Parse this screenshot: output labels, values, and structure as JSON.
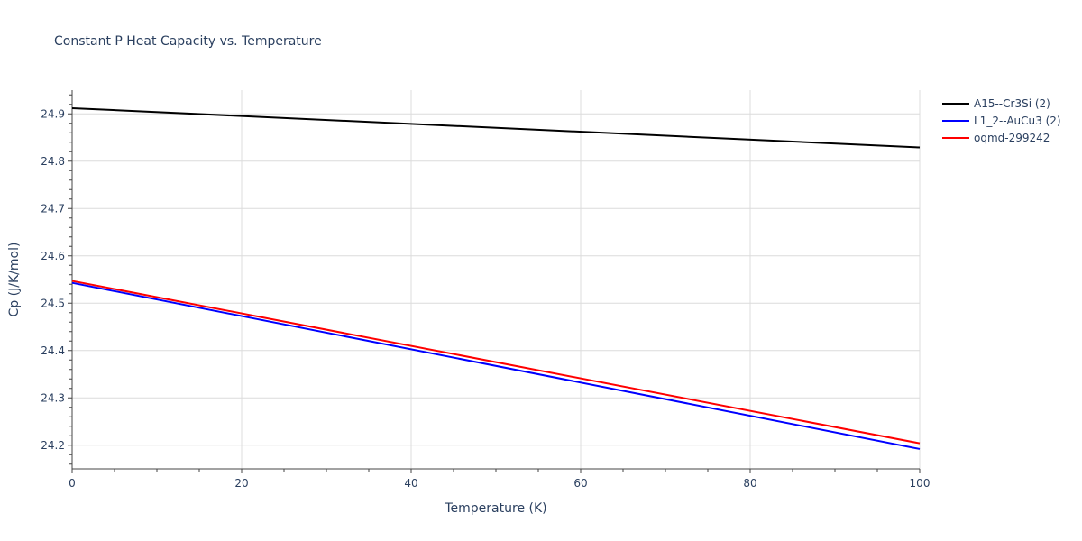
{
  "chart_data": {
    "type": "line",
    "title": "Constant P Heat Capacity vs. Temperature",
    "xlabel": "Temperature (K)",
    "ylabel": "Cp (J/K/mol)",
    "xlim": [
      0,
      100
    ],
    "ylim": [
      24.15,
      24.95
    ],
    "xticks": [
      0,
      20,
      40,
      60,
      80,
      100
    ],
    "xtick_labels": [
      "0",
      "20",
      "40",
      "60",
      "80",
      "100"
    ],
    "yticks": [
      24.2,
      24.3,
      24.4,
      24.5,
      24.6,
      24.7,
      24.8,
      24.9
    ],
    "ytick_labels": [
      "24.2",
      "24.3",
      "24.4",
      "24.5",
      "24.6",
      "24.7",
      "24.8",
      "24.9"
    ],
    "grid": true,
    "legend_position": "top-right",
    "x": [
      0,
      100
    ],
    "series": [
      {
        "name": "A15--Cr3Si (2)",
        "color": "#000000",
        "values": [
          24.912,
          24.829
        ]
      },
      {
        "name": "L1_2--AuCu3 (2)",
        "color": "#0000ff",
        "values": [
          24.543,
          24.192
        ]
      },
      {
        "name": "oqmd-299242",
        "color": "#ff0000",
        "values": [
          24.547,
          24.204
        ]
      }
    ]
  }
}
